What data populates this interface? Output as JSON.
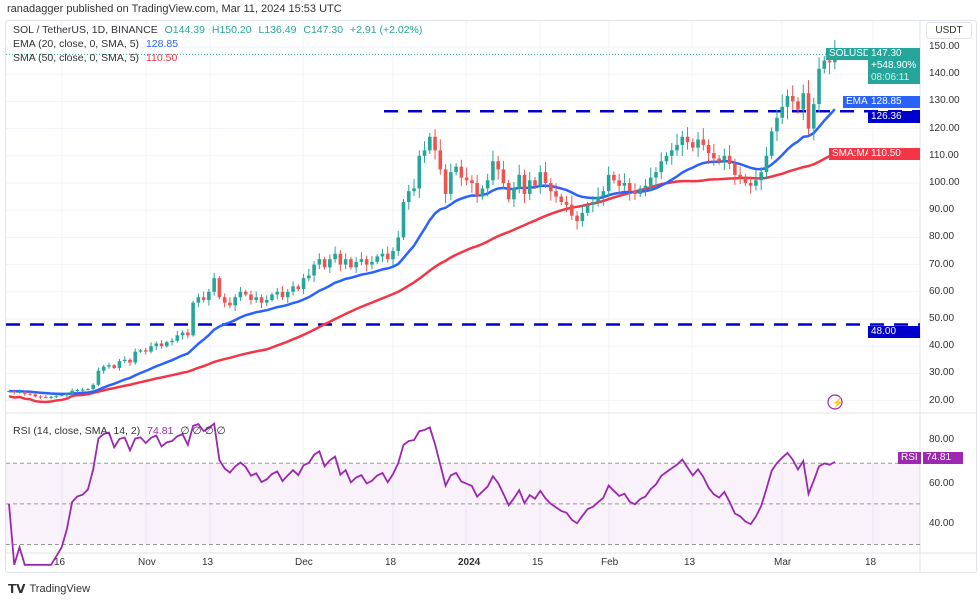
{
  "published": "ranadagger published on TradingView.com, Mar 11, 2024 15:53 UTC",
  "legend": {
    "symbol": "SOL / TetherUS, 1D, BINANCE",
    "open": "O144.39",
    "high": "H150.20",
    "low": "L136.49",
    "close": "C147.30",
    "change": "+2.91 (+2.02%)",
    "ema_label": "EMA (20, close, 0, SMA, 5)",
    "ema_value": "128.85",
    "sma_label": "SMA (50, close, 0, SMA, 5)",
    "sma_value": "110.50",
    "rsi_label": "RSI (14, close, SMA, 14, 2)",
    "rsi_value": "74.81",
    "rsi_extras": "∅ ∅ ∅ ∅"
  },
  "price_axis": {
    "currency": "USDT",
    "ticks": [
      "150.00",
      "140.00",
      "130.00",
      "120.00",
      "110.00",
      "100.00",
      "90.00",
      "80.00",
      "70.00",
      "60.00",
      "50.00",
      "40.00",
      "30.00",
      "20.00"
    ],
    "tags": {
      "symbol": "SOLUSDT",
      "price": "147.30",
      "pct": "+548.90%",
      "countdown": "08:06:11",
      "ema_name": "EMA",
      "ema": "128.85",
      "level_high": "126.36",
      "sma_name": "SMA:MA",
      "sma": "110.50",
      "level_low": "48.00"
    }
  },
  "rsi_axis": {
    "ticks": [
      "80.00",
      "60.00",
      "40.00"
    ],
    "tag_name": "RSI",
    "tag_value": "74.81"
  },
  "time_axis": [
    "16",
    "Nov",
    "13",
    "Dec",
    "18",
    "2024",
    "15",
    "Feb",
    "13",
    "Mar",
    "18"
  ],
  "footer": {
    "brand": "TradingView"
  },
  "colors": {
    "up": "#26a69a",
    "down": "#ef5350",
    "ema": "#2962ff",
    "sma": "#f23645",
    "rsi": "#9c27b0",
    "levels": "#0000cc"
  },
  "chart_data": {
    "type": "candlestick",
    "title": "SOL / TetherUS, 1D, BINANCE",
    "x_start": "2023-10-06",
    "x_end": "2024-03-11",
    "interval": "1D",
    "ylim": [
      15,
      155
    ],
    "horizontal_levels": [
      126.36,
      48.0
    ],
    "closes": [
      23.5,
      23,
      23.2,
      22.5,
      22.3,
      21.5,
      21.3,
      21.2,
      21.4,
      21.8,
      22.0,
      22.5,
      23.6,
      23.9,
      24.0,
      24.3,
      25.8,
      31,
      32.5,
      33,
      32,
      34.5,
      35,
      34,
      38,
      38.5,
      38,
      40,
      41,
      40,
      41.5,
      42,
      44,
      45,
      44,
      56,
      58,
      57,
      60,
      65,
      58,
      56,
      55,
      58,
      60,
      59,
      57,
      58,
      56,
      57,
      59,
      60,
      58,
      60,
      62,
      61,
      65,
      66,
      70,
      72,
      69,
      72,
      74,
      70,
      72,
      69,
      71,
      72,
      70,
      71,
      73,
      74,
      72,
      75,
      80,
      93,
      97,
      98,
      110,
      112,
      117,
      112,
      105,
      96,
      104,
      106,
      102,
      101,
      100,
      95,
      98,
      101,
      108,
      105,
      100,
      94,
      98,
      103,
      96,
      101,
      99,
      104,
      100,
      97,
      95,
      93,
      92,
      88,
      86,
      89,
      92,
      93,
      95,
      97,
      103,
      101,
      99,
      100,
      97,
      96,
      98,
      99,
      102,
      104,
      108,
      110,
      112,
      114,
      117,
      115,
      113,
      116,
      114,
      111,
      109,
      108,
      110,
      107,
      103,
      102,
      100,
      99,
      101,
      104,
      110,
      119,
      124,
      128,
      132,
      130,
      127,
      133,
      120,
      129,
      142,
      145,
      144.39,
      147.3
    ],
    "indicators": {
      "ema20_last": 128.85,
      "sma50_last": 110.5,
      "rsi14_last": 74.81,
      "rsi_bands": [
        70,
        30
      ]
    }
  }
}
